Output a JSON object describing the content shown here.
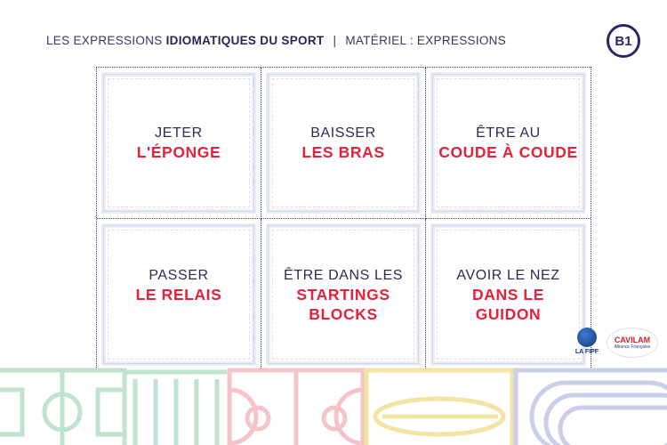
{
  "header": {
    "prefix": "LES EXPRESSIONS",
    "highlight": "IDIOMATIQUES DU SPORT",
    "separator": "|",
    "section": "MATÉRIEL : EXPRESSIONS"
  },
  "level_badge": "B1",
  "cards": [
    {
      "line1": "JETER",
      "line2": "L'ÉPONGE"
    },
    {
      "line1": "BAISSER",
      "line2": "LES BRAS"
    },
    {
      "line1": "ÊTRE AU",
      "line2": "COUDE À COUDE"
    },
    {
      "line1": "PASSER",
      "line2": "LE RELAIS"
    },
    {
      "line1": "ÊTRE DANS LES",
      "line2": "STARTINGS",
      "line3": "BLOCKS"
    },
    {
      "line1": "AVOIR LE NEZ",
      "line2": "DANS LE",
      "line3": "GUIDON"
    }
  ],
  "logos": {
    "fipf": "LA FIPF",
    "cavilam": "CAVILAM",
    "cavilam_sub": "Alliance Française"
  },
  "colors": {
    "accent_red": "#e4223a",
    "navy": "#2b2666",
    "field_green": "#bfe3cf",
    "court_pink": "#f4c4c8",
    "surf_yellow": "#f3e3a4",
    "track_blue": "#c9cfe8"
  }
}
